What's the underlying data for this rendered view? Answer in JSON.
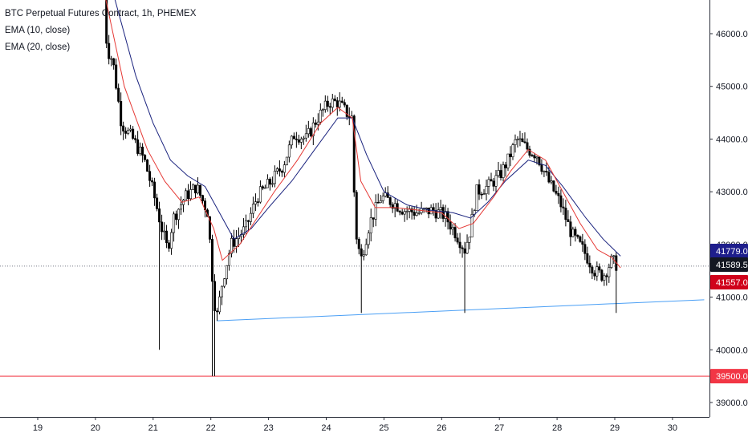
{
  "chart_data": {
    "type": "candlestick",
    "title": "BTC Perpetual Futures Contract, 1h, PHEMEX",
    "indicators": [
      {
        "name": "EMA (10, close)",
        "color": "#e53935"
      },
      {
        "name": "EMA (20, close)",
        "color": "#1a237e"
      }
    ],
    "x_ticks": [
      "19",
      "20",
      "21",
      "22",
      "23",
      "24",
      "25",
      "26",
      "27",
      "28",
      "29",
      "30"
    ],
    "x_range_days": [
      18.6,
      30.55
    ],
    "y_ticks": [
      "39000.0",
      "40000.0",
      "41000.0",
      "42000.0",
      "43000.0",
      "44000.0",
      "45000.0",
      "46000.0"
    ],
    "ylim": [
      38600,
      46800
    ],
    "grid": false,
    "price_path": [
      [
        20.15,
        46800
      ],
      [
        20.2,
        45700
      ],
      [
        20.3,
        45500
      ],
      [
        20.45,
        44300
      ],
      [
        20.65,
        44000
      ],
      [
        20.85,
        43600
      ],
      [
        21.0,
        43000
      ],
      [
        21.15,
        42300
      ],
      [
        21.25,
        41900
      ],
      [
        21.35,
        42500
      ],
      [
        21.55,
        42900
      ],
      [
        21.75,
        43100
      ],
      [
        21.95,
        42600
      ],
      [
        22.05,
        41000
      ],
      [
        22.1,
        40600
      ],
      [
        22.2,
        41300
      ],
      [
        22.35,
        42000
      ],
      [
        22.6,
        42300
      ],
      [
        22.8,
        42900
      ],
      [
        23.05,
        43200
      ],
      [
        23.25,
        43500
      ],
      [
        23.45,
        44100
      ],
      [
        23.65,
        44000
      ],
      [
        23.85,
        44400
      ],
      [
        24.05,
        44700
      ],
      [
        24.2,
        44700
      ],
      [
        24.35,
        44500
      ],
      [
        24.45,
        44400
      ],
      [
        24.5,
        42300
      ],
      [
        24.6,
        41700
      ],
      [
        24.75,
        42400
      ],
      [
        24.95,
        42900
      ],
      [
        25.15,
        42800
      ],
      [
        25.35,
        42650
      ],
      [
        25.6,
        42600
      ],
      [
        25.85,
        42650
      ],
      [
        26.05,
        42550
      ],
      [
        26.25,
        42200
      ],
      [
        26.4,
        41900
      ],
      [
        26.5,
        42300
      ],
      [
        26.6,
        43000
      ],
      [
        26.8,
        43100
      ],
      [
        27.0,
        43300
      ],
      [
        27.15,
        43600
      ],
      [
        27.3,
        44000
      ],
      [
        27.5,
        43800
      ],
      [
        27.65,
        43700
      ],
      [
        27.85,
        43200
      ],
      [
        28.05,
        42800
      ],
      [
        28.25,
        42200
      ],
      [
        28.45,
        41900
      ],
      [
        28.65,
        41500
      ],
      [
        28.8,
        41400
      ],
      [
        28.95,
        41700
      ],
      [
        29.05,
        41589.5
      ]
    ],
    "wick_lows": [
      [
        21.1,
        40000
      ],
      [
        22.05,
        39500
      ],
      [
        24.6,
        40700
      ],
      [
        26.4,
        40700
      ],
      [
        29.05,
        40700
      ]
    ],
    "ema10_path": [
      [
        20.15,
        46800
      ],
      [
        20.5,
        45000
      ],
      [
        20.9,
        43800
      ],
      [
        21.2,
        43200
      ],
      [
        21.5,
        42800
      ],
      [
        21.8,
        42900
      ],
      [
        22.05,
        42300
      ],
      [
        22.2,
        41700
      ],
      [
        22.5,
        42000
      ],
      [
        22.8,
        42500
      ],
      [
        23.1,
        43000
      ],
      [
        23.5,
        43600
      ],
      [
        23.9,
        44300
      ],
      [
        24.2,
        44600
      ],
      [
        24.45,
        44400
      ],
      [
        24.6,
        43200
      ],
      [
        24.85,
        42700
      ],
      [
        25.2,
        42700
      ],
      [
        25.6,
        42650
      ],
      [
        26.0,
        42600
      ],
      [
        26.3,
        42300
      ],
      [
        26.55,
        42400
      ],
      [
        26.9,
        42900
      ],
      [
        27.2,
        43400
      ],
      [
        27.5,
        43800
      ],
      [
        27.8,
        43600
      ],
      [
        28.1,
        43000
      ],
      [
        28.4,
        42400
      ],
      [
        28.7,
        41900
      ],
      [
        28.95,
        41750
      ],
      [
        29.1,
        41557
      ]
    ],
    "ema20_path": [
      [
        20.3,
        46800
      ],
      [
        20.7,
        45200
      ],
      [
        21.0,
        44300
      ],
      [
        21.3,
        43600
      ],
      [
        21.6,
        43300
      ],
      [
        21.9,
        43100
      ],
      [
        22.15,
        42600
      ],
      [
        22.4,
        42100
      ],
      [
        22.7,
        42300
      ],
      [
        23.0,
        42700
      ],
      [
        23.4,
        43200
      ],
      [
        23.8,
        43800
      ],
      [
        24.2,
        44400
      ],
      [
        24.45,
        44400
      ],
      [
        24.7,
        43700
      ],
      [
        25.0,
        43000
      ],
      [
        25.4,
        42750
      ],
      [
        25.8,
        42650
      ],
      [
        26.2,
        42600
      ],
      [
        26.5,
        42500
      ],
      [
        26.8,
        42800
      ],
      [
        27.1,
        43200
      ],
      [
        27.5,
        43600
      ],
      [
        27.8,
        43500
      ],
      [
        28.1,
        43100
      ],
      [
        28.5,
        42500
      ],
      [
        28.8,
        42100
      ],
      [
        29.1,
        41779
      ]
    ],
    "trendline": {
      "start": [
        22.1,
        40550
      ],
      "end": [
        30.55,
        40950
      ],
      "color": "#4a9ff5"
    },
    "horizontal_level": {
      "value": 39500,
      "color": "#f23645"
    },
    "price_labels": [
      {
        "value": 41779.0,
        "text": "41779.0",
        "color": "#1e1e8c"
      },
      {
        "value": 41589.5,
        "text": "41589.5",
        "color": "#131722"
      },
      {
        "value": 41557.0,
        "text": "41557.0",
        "color": "#d0021b"
      },
      {
        "value": 39500,
        "text": "39500.0",
        "color": "#f23645"
      }
    ],
    "last_price": 41589.5
  }
}
